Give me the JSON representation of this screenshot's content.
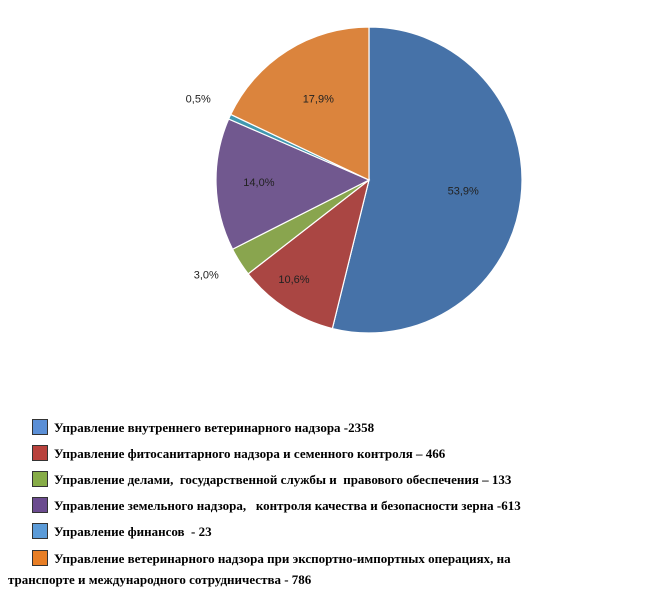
{
  "chart_data": {
    "type": "pie",
    "title": "",
    "slices": [
      {
        "label": "Управление внутреннего ветеринарного надзора -2358",
        "value": 2358,
        "percent_label": "53,9%",
        "color": "#4672a8",
        "swatch": "#5b8fd6"
      },
      {
        "label": "Управление фитосанитарного надзора и семенного контроля – 466",
        "value": 466,
        "percent_label": "10,6%",
        "color": "#aa4643",
        "swatch": "#b8413c"
      },
      {
        "label": "Управление делами,  государственной службы и  правового обеспечения – 133",
        "value": 133,
        "percent_label": "3,0%",
        "color": "#89a54e",
        "swatch": "#86ac47"
      },
      {
        "label": "Управление земельного надзора,   контроля качества и безопасности зерна -613",
        "value": 613,
        "percent_label": "14,0%",
        "color": "#71588f",
        "swatch": "#6b4b8f"
      },
      {
        "label": "Управление финансов  - 23",
        "value": 23,
        "percent_label": "0,5%",
        "color": "#4198af",
        "swatch": "#5b9bd8"
      },
      {
        "label": "Управление ветеринарного надзора при экспортно-импортных операциях, на транспорте и международного сотрудничества - 786",
        "value": 786,
        "percent_label": "17,9%",
        "color": "#db843d",
        "swatch": "#e87e25"
      }
    ],
    "legend_position": "bottom"
  },
  "legend": {
    "item_0": "Управление внутреннего ветеринарного надзора -2358",
    "item_1": "Управление фитосанитарного надзора и семенного контроля – 466",
    "item_2": "Управление делами,  государственной службы и  правового обеспечения – 133",
    "item_3": "Управление земельного надзора,   контроля качества и безопасности зерна -613",
    "item_4": "Управление финансов  - 23",
    "item_5_line1": "Управление ветеринарного надзора при экспортно-импортных операциях, на",
    "item_5_line2": "транспорте и международного сотрудничества - 786"
  }
}
